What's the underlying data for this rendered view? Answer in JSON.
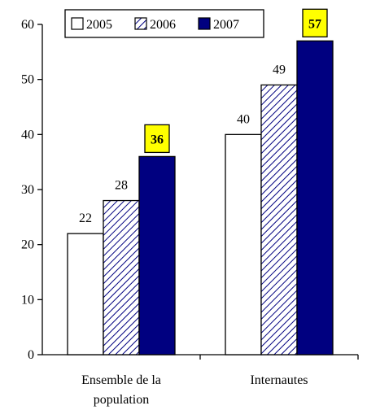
{
  "chart_data": {
    "type": "bar",
    "categories": [
      "Ensemble de la population",
      "Internautes"
    ],
    "category_lines": [
      [
        "Ensemble de la",
        "population"
      ],
      [
        "Internautes"
      ]
    ],
    "series": [
      {
        "name": "2005",
        "values": [
          22,
          40
        ],
        "style": "white"
      },
      {
        "name": "2006",
        "values": [
          28,
          49
        ],
        "style": "hatched"
      },
      {
        "name": "2007",
        "values": [
          36,
          57
        ],
        "style": "navy"
      }
    ],
    "ylim": [
      0,
      60
    ],
    "yticks": [
      0,
      10,
      20,
      30,
      40,
      50,
      60
    ],
    "legend_position": "top",
    "highlighted_series": "2007",
    "colors": {
      "navy": "#000080",
      "highlight_box": "#ffff00",
      "hatch": "#000080",
      "outline": "#000000"
    }
  }
}
